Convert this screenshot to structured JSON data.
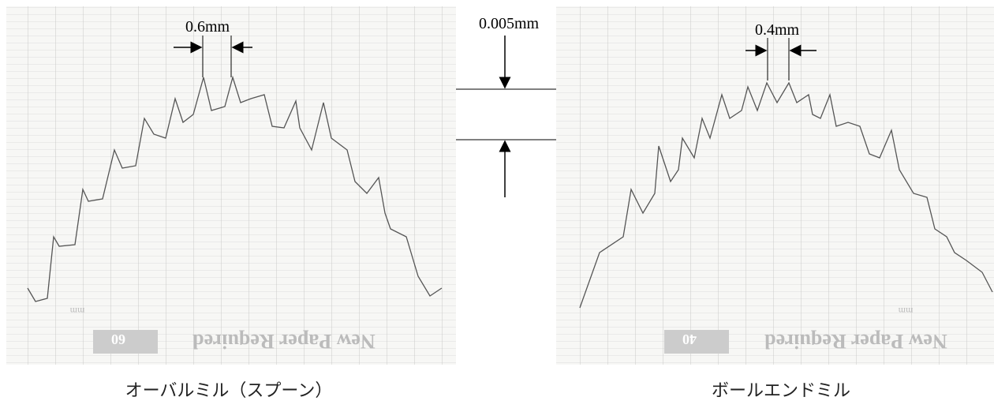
{
  "left_chart": {
    "pitch_label": "0.6mm",
    "paper_notice": "New Paper Required",
    "speed_label": "60",
    "unit_label": "mm",
    "caption": "オーバルミル（スプーン）"
  },
  "right_chart": {
    "pitch_label": "0.4mm",
    "paper_notice": "New Paper Required",
    "speed_label": "40",
    "unit_label": "mm",
    "caption": "ボールエンドミル"
  },
  "height_scale_label": "0.005mm"
}
